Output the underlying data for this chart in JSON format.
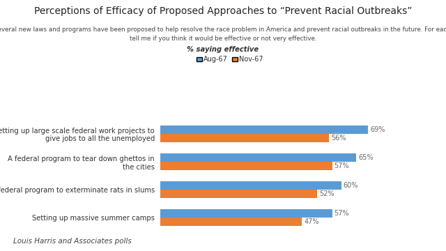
{
  "title": "Perceptions of Efficacy of Proposed Approaches to “Prevent Racial Outbreaks”",
  "subtitle_line1": "Several new laws and programs have been proposed to help resolve the race problem in America and prevent racial outbreaks in the future. For each,",
  "subtitle_line2": "tell me if you think it would be effective or not very effective.",
  "subtitle_line3": "% saying effective",
  "footnote": "Louis Harris and Associates polls",
  "categories": [
    "Setting up large scale federal work projects to\ngive jobs to all the unemployed",
    "A federal program to tear down ghettos in\nthe cities",
    "A federal program to exterminate rats in slums",
    "Setting up massive summer camps"
  ],
  "aug67": [
    69,
    65,
    60,
    57
  ],
  "nov67": [
    56,
    57,
    52,
    47
  ],
  "color_aug": "#5B9BD5",
  "color_nov": "#ED7D31",
  "legend_aug": "Aug-67",
  "legend_nov": "Nov-67",
  "xlim": [
    0,
    80
  ],
  "background_color": "#FFFFFF"
}
